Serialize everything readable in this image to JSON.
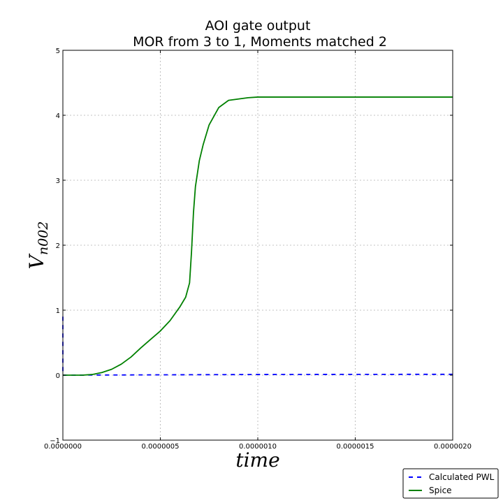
{
  "chart_data": {
    "type": "line",
    "title_line1": "AOI gate    output",
    "title_line2": "MOR from 3 to 1, Moments matched 2",
    "xlabel": "time",
    "ylabel_main": "V",
    "ylabel_sub": "n002",
    "xlim": [
      0,
      2e-06
    ],
    "ylim": [
      -1,
      5
    ],
    "x_ticks": [
      0,
      5e-07,
      1e-06,
      1.5e-06,
      2e-06
    ],
    "x_tick_labels": [
      "0.0000000",
      "0.0000005",
      "0.0000010",
      "0.0000015",
      "0.0000020"
    ],
    "y_ticks": [
      -1,
      0,
      1,
      2,
      3,
      4,
      5
    ],
    "y_tick_labels": [
      "−1",
      "0",
      "1",
      "2",
      "3",
      "4",
      "5"
    ],
    "grid": true,
    "legend_position": "bottom-right",
    "series": [
      {
        "name": "Calculated PWL",
        "color": "#0000ff",
        "style": "dashed",
        "points": [
          [
            0,
            0.9
          ],
          [
            0,
            0.0
          ],
          [
            2e-08,
            0.0
          ],
          [
            5e-07,
            0.005
          ],
          [
            1e-06,
            0.01
          ],
          [
            1.5e-06,
            0.012
          ],
          [
            2e-06,
            0.013
          ]
        ]
      },
      {
        "name": "Spice",
        "color": "#008000",
        "style": "solid",
        "points": [
          [
            0,
            0
          ],
          [
            1e-07,
            0.0
          ],
          [
            1.5e-07,
            0.01
          ],
          [
            2e-07,
            0.04
          ],
          [
            2.5e-07,
            0.09
          ],
          [
            3e-07,
            0.17
          ],
          [
            3.5e-07,
            0.28
          ],
          [
            4e-07,
            0.42
          ],
          [
            4.5e-07,
            0.55
          ],
          [
            5e-07,
            0.68
          ],
          [
            5.5e-07,
            0.84
          ],
          [
            6e-07,
            1.05
          ],
          [
            6.3e-07,
            1.2
          ],
          [
            6.5e-07,
            1.42
          ],
          [
            6.6e-07,
            1.9
          ],
          [
            6.7e-07,
            2.5
          ],
          [
            6.8e-07,
            2.9
          ],
          [
            7e-07,
            3.3
          ],
          [
            7.2e-07,
            3.55
          ],
          [
            7.5e-07,
            3.85
          ],
          [
            8e-07,
            4.12
          ],
          [
            8.5e-07,
            4.23
          ],
          [
            9e-07,
            4.25
          ],
          [
            9.5e-07,
            4.27
          ],
          [
            1e-06,
            4.28
          ],
          [
            1.5e-06,
            4.28
          ],
          [
            2e-06,
            4.28
          ]
        ]
      }
    ]
  }
}
